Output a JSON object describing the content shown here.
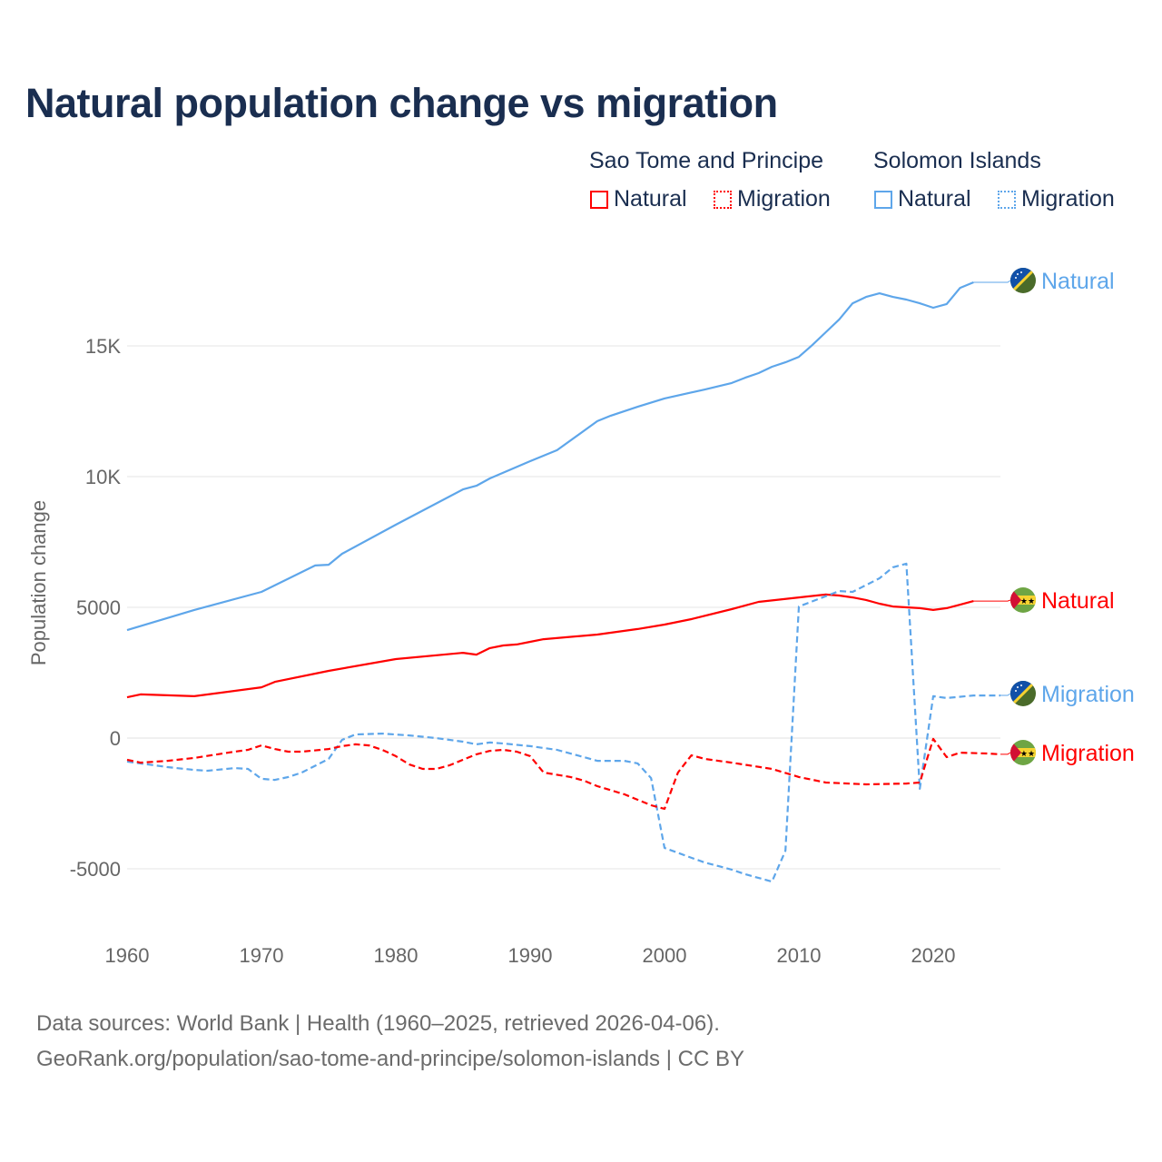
{
  "title": "Natural population change vs migration",
  "legend": {
    "groups": [
      {
        "name": "Sao Tome and Principe",
        "items": [
          "Natural",
          "Migration"
        ],
        "color": "#ff0000"
      },
      {
        "name": "Solomon Islands",
        "items": [
          "Natural",
          "Migration"
        ],
        "color": "#5ea6ea"
      }
    ]
  },
  "footer": {
    "line1": "Data sources: World Bank | Health (1960–2025, retrieved 2026-04-06).",
    "line2": "GeoRank.org/population/sao-tome-and-principe/solomon-islands | CC BY"
  },
  "chart_data": {
    "type": "line",
    "title": "Natural population change vs migration",
    "xlabel": "",
    "ylabel": "Population change",
    "xlim": [
      1960,
      2025
    ],
    "ylim": [
      -7000,
      18500
    ],
    "x_ticks": [
      1960,
      1970,
      1980,
      1990,
      2000,
      2010,
      2020
    ],
    "x_tick_labels": [
      "1960",
      "1970",
      "1980",
      "1990",
      "2000",
      "2010",
      "2020"
    ],
    "y_ticks": [
      -5000,
      0,
      5000,
      10000,
      15000
    ],
    "y_tick_labels": [
      "-5000",
      "0",
      "5000",
      "10K",
      "15K"
    ],
    "grid": true,
    "legend_position": "top-right",
    "series": [
      {
        "name": "Solomon Islands Natural",
        "label": "Natural",
        "country": "Solomon Islands",
        "color": "#5ea6ea",
        "dash": "solid",
        "x": [
          1960,
          1965,
          1970,
          1974,
          1975,
          1976,
          1980,
          1985,
          1986,
          1987,
          1990,
          1992,
          1995,
          1996,
          1998,
          2000,
          2003,
          2005,
          2006,
          2007,
          2008,
          2009,
          2010,
          2011,
          2012,
          2013,
          2014,
          2015,
          2016,
          2017,
          2018,
          2019,
          2020,
          2021,
          2022,
          2023
        ],
        "y": [
          4130,
          4900,
          5590,
          6600,
          6630,
          7050,
          8160,
          9510,
          9650,
          9930,
          10590,
          11010,
          12120,
          12330,
          12670,
          12990,
          13330,
          13580,
          13780,
          13960,
          14200,
          14370,
          14580,
          15030,
          15520,
          16010,
          16630,
          16870,
          17010,
          16870,
          16770,
          16630,
          16460,
          16600,
          17220,
          17430
        ]
      },
      {
        "name": "Sao Tome and Principe Natural",
        "label": "Natural",
        "country": "Sao Tome and Principe",
        "color": "#ff0000",
        "dash": "solid",
        "x": [
          1960,
          1961,
          1965,
          1970,
          1971,
          1975,
          1980,
          1985,
          1986,
          1987,
          1988,
          1989,
          1990,
          1991,
          1995,
          1998,
          2000,
          2002,
          2005,
          2007,
          2010,
          2012,
          2013,
          2014,
          2015,
          2016,
          2017,
          2019,
          2020,
          2021,
          2022,
          2023
        ],
        "y": [
          1560,
          1670,
          1600,
          1940,
          2150,
          2570,
          3020,
          3260,
          3190,
          3440,
          3540,
          3580,
          3680,
          3780,
          3960,
          4170,
          4340,
          4550,
          4930,
          5210,
          5380,
          5490,
          5450,
          5380,
          5280,
          5140,
          5030,
          4970,
          4900,
          4970,
          5100,
          5240
        ]
      },
      {
        "name": "Solomon Islands Migration",
        "label": "Migration",
        "country": "Solomon Islands",
        "color": "#5ea6ea",
        "dash": "dashed",
        "x": [
          1960,
          1963,
          1965,
          1966,
          1968,
          1969,
          1970,
          1971,
          1972,
          1973,
          1975,
          1976,
          1977,
          1979,
          1981,
          1983,
          1985,
          1986,
          1987,
          1988,
          1990,
          1992,
          1994,
          1995,
          1997,
          1998,
          1999,
          2000,
          2002,
          2003,
          2005,
          2006,
          2008,
          2009,
          2010,
          2013,
          2014,
          2016,
          2017,
          2018,
          2019,
          2020,
          2021,
          2023,
          2025
        ],
        "y": [
          -900,
          -1110,
          -1220,
          -1250,
          -1150,
          -1180,
          -1560,
          -1600,
          -1490,
          -1320,
          -800,
          -70,
          140,
          170,
          100,
          0,
          -140,
          -240,
          -170,
          -210,
          -310,
          -450,
          -730,
          -870,
          -870,
          -970,
          -1530,
          -4200,
          -4580,
          -4760,
          -5030,
          -5210,
          -5490,
          -4310,
          5030,
          5620,
          5590,
          6110,
          6530,
          6670,
          -1940,
          1600,
          1530,
          1630,
          1630
        ]
      },
      {
        "name": "Sao Tome and Principe Migration",
        "label": "Migration",
        "country": "Sao Tome and Principe",
        "color": "#ff0000",
        "dash": "dashed",
        "x": [
          1960,
          1961,
          1963,
          1965,
          1968,
          1969,
          1970,
          1971,
          1972,
          1973,
          1975,
          1976,
          1977,
          1978,
          1979,
          1980,
          1981,
          1982,
          1983,
          1984,
          1985,
          1986,
          1987,
          1988,
          1989,
          1990,
          1991,
          1993,
          1994,
          1995,
          1997,
          1999,
          2000,
          2001,
          2002,
          2003,
          2005,
          2008,
          2010,
          2012,
          2015,
          2018,
          2019,
          2020,
          2021,
          2022,
          2024,
          2025
        ],
        "y": [
          -830,
          -940,
          -870,
          -760,
          -520,
          -450,
          -280,
          -420,
          -520,
          -520,
          -420,
          -310,
          -240,
          -280,
          -450,
          -690,
          -1010,
          -1180,
          -1180,
          -1040,
          -830,
          -620,
          -490,
          -450,
          -520,
          -690,
          -1320,
          -1490,
          -1630,
          -1840,
          -2150,
          -2570,
          -2710,
          -1320,
          -660,
          -800,
          -940,
          -1180,
          -1490,
          -1700,
          -1770,
          -1740,
          -1700,
          -30,
          -730,
          -560,
          -590,
          -620
        ]
      }
    ]
  }
}
